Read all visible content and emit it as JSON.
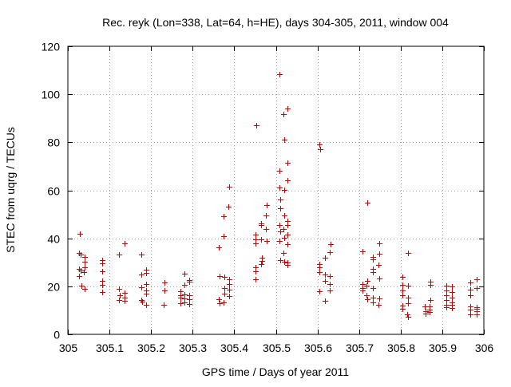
{
  "chart_data": {
    "type": "scatter",
    "title": "Rec. reyk (Lon=338, Lat=64, h=HE), days 304-305, 2011, window 004",
    "xlabel": "GPS time / Days of year 2011",
    "ylabel": "STEC from uqrg / TECUs",
    "xlim": [
      305,
      306
    ],
    "ylim": [
      0,
      120
    ],
    "xticks": [
      305,
      305.1,
      305.2,
      305.3,
      305.4,
      305.5,
      305.6,
      305.7,
      305.8,
      305.9,
      306
    ],
    "xtick_labels": [
      "305",
      "305.1",
      "305.2",
      "305.3",
      "305.4",
      "305.5",
      "305.6",
      "305.7",
      "305.8",
      "305.9",
      "306"
    ],
    "yticks": [
      0,
      20,
      40,
      60,
      80,
      100,
      120
    ],
    "ytick_labels": [
      "0",
      "20",
      "40",
      "60",
      "80",
      "100",
      "120"
    ],
    "grid": true,
    "marker": "+",
    "color": "#cc0000",
    "points": [
      [
        305.028,
        41.8
      ],
      [
        305.027,
        33.8
      ],
      [
        305.03,
        33.4
      ],
      [
        305.027,
        27.2
      ],
      [
        305.031,
        26.6
      ],
      [
        305.027,
        24.2
      ],
      [
        305.032,
        20.2
      ],
      [
        305.04,
        32.4
      ],
      [
        305.04,
        30.2
      ],
      [
        305.04,
        27.8
      ],
      [
        305.039,
        26.0
      ],
      [
        305.04,
        18.8
      ],
      [
        305.083,
        31.0
      ],
      [
        305.082,
        29.6
      ],
      [
        305.082,
        26.2
      ],
      [
        305.083,
        22.2
      ],
      [
        305.083,
        20.6
      ],
      [
        305.082,
        17.6
      ],
      [
        305.123,
        33.2
      ],
      [
        305.123,
        18.8
      ],
      [
        305.124,
        16.4
      ],
      [
        305.123,
        14.4
      ],
      [
        305.136,
        37.8
      ],
      [
        305.137,
        17.4
      ],
      [
        305.136,
        15.2
      ],
      [
        305.136,
        13.8
      ],
      [
        305.177,
        33.4
      ],
      [
        305.177,
        24.8
      ],
      [
        305.176,
        19.6
      ],
      [
        305.177,
        14.2
      ],
      [
        305.178,
        13.6
      ],
      [
        305.189,
        26.8
      ],
      [
        305.188,
        25.6
      ],
      [
        305.189,
        21.0
      ],
      [
        305.189,
        18.2
      ],
      [
        305.188,
        16.8
      ],
      [
        305.188,
        12.4
      ],
      [
        305.232,
        21.6
      ],
      [
        305.232,
        18.4
      ],
      [
        305.231,
        12.4
      ],
      [
        305.271,
        17.8
      ],
      [
        305.271,
        16.2
      ],
      [
        305.271,
        15.2
      ],
      [
        305.271,
        12.8
      ],
      [
        305.281,
        25.4
      ],
      [
        305.281,
        20.6
      ],
      [
        305.281,
        16.6
      ],
      [
        305.28,
        14.8
      ],
      [
        305.281,
        13.2
      ],
      [
        305.292,
        22.6
      ],
      [
        305.292,
        22.0
      ],
      [
        305.292,
        16.4
      ],
      [
        305.292,
        14.6
      ],
      [
        305.292,
        12.6
      ],
      [
        305.363,
        36.2
      ],
      [
        305.364,
        24.2
      ],
      [
        305.363,
        14.6
      ],
      [
        305.364,
        13.0
      ],
      [
        305.375,
        49.2
      ],
      [
        305.375,
        41.0
      ],
      [
        305.376,
        23.8
      ],
      [
        305.376,
        19.2
      ],
      [
        305.376,
        17.0
      ],
      [
        305.375,
        13.2
      ],
      [
        305.387,
        61.6
      ],
      [
        305.386,
        53.2
      ],
      [
        305.387,
        22.8
      ],
      [
        305.387,
        21.0
      ],
      [
        305.387,
        18.6
      ],
      [
        305.387,
        16.0
      ],
      [
        305.453,
        87.2
      ],
      [
        305.452,
        41.4
      ],
      [
        305.452,
        39.4
      ],
      [
        305.452,
        37.8
      ],
      [
        305.452,
        28.0
      ],
      [
        305.452,
        26.4
      ],
      [
        305.452,
        22.8
      ],
      [
        305.464,
        46.2
      ],
      [
        305.464,
        45.4
      ],
      [
        305.465,
        39.6
      ],
      [
        305.466,
        32.0
      ],
      [
        305.466,
        30.6
      ],
      [
        305.465,
        29.2
      ],
      [
        305.477,
        53.8
      ],
      [
        305.476,
        49.6
      ],
      [
        305.476,
        43.8
      ],
      [
        305.477,
        39.0
      ],
      [
        305.509,
        108.2
      ],
      [
        305.509,
        68.0
      ],
      [
        305.509,
        61.0
      ],
      [
        305.51,
        56.2
      ],
      [
        305.511,
        52.4
      ],
      [
        305.509,
        45.6
      ],
      [
        305.51,
        43.0
      ],
      [
        305.508,
        38.8
      ],
      [
        305.51,
        31.0
      ],
      [
        305.519,
        91.8
      ],
      [
        305.52,
        81.0
      ],
      [
        305.52,
        60.2
      ],
      [
        305.52,
        49.6
      ],
      [
        305.519,
        44.0
      ],
      [
        305.52,
        40.2
      ],
      [
        305.519,
        33.8
      ],
      [
        305.52,
        30.4
      ],
      [
        305.528,
        94.2
      ],
      [
        305.528,
        71.6
      ],
      [
        305.528,
        64.2
      ],
      [
        305.527,
        47.2
      ],
      [
        305.528,
        45.6
      ],
      [
        305.528,
        41.6
      ],
      [
        305.527,
        37.6
      ],
      [
        305.528,
        30.0
      ],
      [
        305.527,
        29.0
      ],
      [
        305.605,
        79.0
      ],
      [
        305.606,
        77.2
      ],
      [
        305.605,
        29.2
      ],
      [
        305.604,
        27.8
      ],
      [
        305.605,
        25.8
      ],
      [
        305.605,
        18.0
      ],
      [
        305.618,
        31.8
      ],
      [
        305.618,
        24.8
      ],
      [
        305.618,
        22.4
      ],
      [
        305.618,
        13.8
      ],
      [
        305.632,
        37.6
      ],
      [
        305.63,
        34.4
      ],
      [
        305.63,
        24.2
      ],
      [
        305.63,
        20.8
      ],
      [
        305.63,
        18.4
      ],
      [
        305.709,
        34.6
      ],
      [
        305.709,
        20.8
      ],
      [
        305.709,
        19.2
      ],
      [
        305.708,
        18.2
      ],
      [
        305.719,
        55.0
      ],
      [
        305.719,
        22.4
      ],
      [
        305.718,
        20.2
      ],
      [
        305.718,
        16.4
      ],
      [
        305.719,
        14.6
      ],
      [
        305.734,
        32.4
      ],
      [
        305.734,
        31.2
      ],
      [
        305.734,
        27.4
      ],
      [
        305.734,
        25.8
      ],
      [
        305.734,
        19.4
      ],
      [
        305.734,
        15.4
      ],
      [
        305.733,
        13.4
      ],
      [
        305.748,
        37.8
      ],
      [
        305.748,
        33.6
      ],
      [
        305.747,
        28.8
      ],
      [
        305.748,
        23.2
      ],
      [
        305.748,
        14.8
      ],
      [
        305.747,
        12.2
      ],
      [
        305.805,
        23.8
      ],
      [
        305.805,
        20.6
      ],
      [
        305.805,
        18.4
      ],
      [
        305.805,
        16.2
      ],
      [
        305.805,
        12.0
      ],
      [
        305.805,
        10.8
      ],
      [
        305.818,
        34.0
      ],
      [
        305.818,
        20.2
      ],
      [
        305.817,
        15.2
      ],
      [
        305.817,
        12.8
      ],
      [
        305.816,
        8.4
      ],
      [
        305.817,
        7.2
      ],
      [
        305.858,
        11.6
      ],
      [
        305.859,
        9.8
      ],
      [
        305.859,
        8.6
      ],
      [
        305.871,
        22.0
      ],
      [
        305.871,
        20.6
      ],
      [
        305.871,
        14.2
      ],
      [
        305.87,
        11.6
      ],
      [
        305.87,
        10.4
      ],
      [
        305.87,
        9.2
      ],
      [
        305.91,
        20.2
      ],
      [
        305.91,
        18.4
      ],
      [
        305.91,
        16.4
      ],
      [
        305.91,
        14.4
      ],
      [
        305.91,
        12.2
      ],
      [
        305.91,
        11.2
      ],
      [
        305.923,
        19.8
      ],
      [
        305.923,
        17.6
      ],
      [
        305.923,
        15.4
      ],
      [
        305.923,
        13.2
      ],
      [
        305.923,
        12.2
      ],
      [
        305.923,
        11.0
      ],
      [
        305.967,
        21.6
      ],
      [
        305.967,
        18.6
      ],
      [
        305.967,
        16.2
      ],
      [
        305.967,
        11.6
      ],
      [
        305.967,
        10.2
      ],
      [
        305.967,
        8.4
      ],
      [
        305.983,
        22.8
      ],
      [
        305.983,
        19.4
      ],
      [
        305.983,
        11.4
      ],
      [
        305.983,
        9.8
      ],
      [
        305.983,
        8.2
      ],
      [
        305.983,
        10.6
      ]
    ]
  }
}
